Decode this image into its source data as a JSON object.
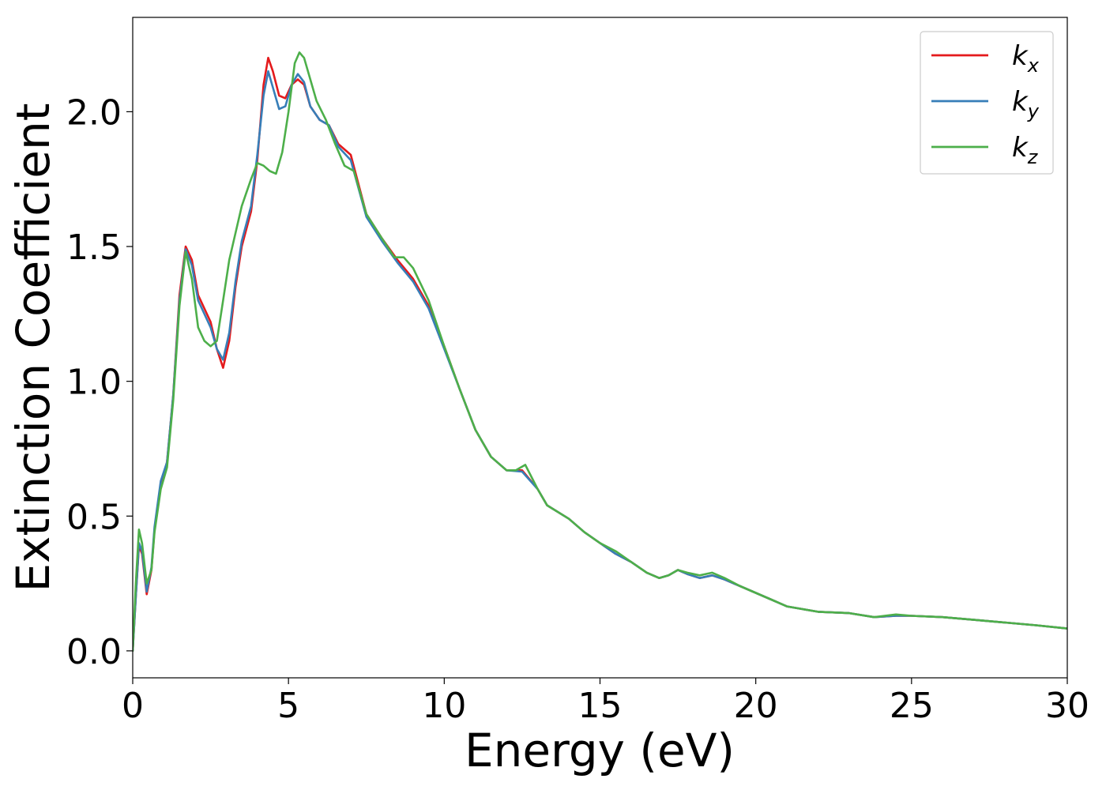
{
  "chart_data": {
    "type": "line",
    "xlabel": "Energy (eV)",
    "ylabel": "Extinction Coefficient",
    "xlim": [
      0,
      30
    ],
    "ylim": [
      -0.1,
      2.35
    ],
    "x_ticks": [
      "0",
      "5",
      "10",
      "15",
      "20",
      "25",
      "30"
    ],
    "y_ticks": [
      "0.0",
      "0.5",
      "1.0",
      "1.5",
      "2.0"
    ],
    "grid": false,
    "legend_position": "top-right",
    "series": [
      {
        "name": "k_x",
        "label_base": "k",
        "label_sub": "x",
        "color": "#e41a1c",
        "points": [
          [
            0,
            0
          ],
          [
            0.1,
            0.2
          ],
          [
            0.2,
            0.39
          ],
          [
            0.3,
            0.36
          ],
          [
            0.45,
            0.21
          ],
          [
            0.6,
            0.3
          ],
          [
            0.7,
            0.45
          ],
          [
            0.9,
            0.62
          ],
          [
            1.1,
            0.7
          ],
          [
            1.3,
            0.95
          ],
          [
            1.5,
            1.32
          ],
          [
            1.7,
            1.5
          ],
          [
            1.9,
            1.45
          ],
          [
            2.1,
            1.32
          ],
          [
            2.3,
            1.27
          ],
          [
            2.5,
            1.22
          ],
          [
            2.7,
            1.12
          ],
          [
            2.9,
            1.05
          ],
          [
            3.1,
            1.15
          ],
          [
            3.3,
            1.35
          ],
          [
            3.5,
            1.5
          ],
          [
            3.8,
            1.63
          ],
          [
            4.0,
            1.82
          ],
          [
            4.2,
            2.1
          ],
          [
            4.35,
            2.2
          ],
          [
            4.5,
            2.15
          ],
          [
            4.7,
            2.06
          ],
          [
            4.9,
            2.05
          ],
          [
            5.1,
            2.1
          ],
          [
            5.3,
            2.12
          ],
          [
            5.5,
            2.1
          ],
          [
            5.7,
            2.02
          ],
          [
            6.0,
            1.97
          ],
          [
            6.3,
            1.95
          ],
          [
            6.6,
            1.88
          ],
          [
            7.0,
            1.84
          ],
          [
            7.5,
            1.62
          ],
          [
            8.0,
            1.53
          ],
          [
            8.5,
            1.45
          ],
          [
            9.0,
            1.38
          ],
          [
            9.5,
            1.28
          ],
          [
            10.0,
            1.13
          ],
          [
            10.5,
            0.97
          ],
          [
            11.0,
            0.82
          ],
          [
            11.5,
            0.72
          ],
          [
            12.0,
            0.67
          ],
          [
            12.5,
            0.67
          ],
          [
            13.0,
            0.6
          ],
          [
            13.3,
            0.54
          ],
          [
            14.0,
            0.49
          ],
          [
            14.5,
            0.44
          ],
          [
            15.0,
            0.4
          ],
          [
            15.5,
            0.36
          ],
          [
            16.0,
            0.33
          ],
          [
            16.5,
            0.29
          ],
          [
            16.9,
            0.27
          ],
          [
            17.2,
            0.28
          ],
          [
            17.5,
            0.3
          ],
          [
            17.8,
            0.285
          ],
          [
            18.2,
            0.27
          ],
          [
            18.6,
            0.28
          ],
          [
            19.0,
            0.265
          ],
          [
            19.5,
            0.24
          ],
          [
            20.0,
            0.215
          ],
          [
            20.5,
            0.19
          ],
          [
            21.0,
            0.165
          ],
          [
            21.5,
            0.155
          ],
          [
            22.0,
            0.145
          ],
          [
            23.0,
            0.14
          ],
          [
            23.8,
            0.125
          ],
          [
            24.5,
            0.13
          ],
          [
            25.0,
            0.13
          ],
          [
            26.0,
            0.125
          ],
          [
            27.0,
            0.115
          ],
          [
            28.0,
            0.105
          ],
          [
            29.0,
            0.095
          ],
          [
            30.0,
            0.083
          ]
        ]
      },
      {
        "name": "k_y",
        "label_base": "k",
        "label_sub": "y",
        "color": "#377eb8",
        "points": [
          [
            0,
            0
          ],
          [
            0.1,
            0.2
          ],
          [
            0.2,
            0.4
          ],
          [
            0.3,
            0.37
          ],
          [
            0.45,
            0.22
          ],
          [
            0.6,
            0.31
          ],
          [
            0.7,
            0.46
          ],
          [
            0.9,
            0.63
          ],
          [
            1.1,
            0.7
          ],
          [
            1.3,
            0.95
          ],
          [
            1.5,
            1.3
          ],
          [
            1.7,
            1.49
          ],
          [
            1.9,
            1.43
          ],
          [
            2.1,
            1.3
          ],
          [
            2.3,
            1.25
          ],
          [
            2.5,
            1.2
          ],
          [
            2.7,
            1.12
          ],
          [
            2.9,
            1.08
          ],
          [
            3.1,
            1.18
          ],
          [
            3.3,
            1.37
          ],
          [
            3.5,
            1.52
          ],
          [
            3.8,
            1.65
          ],
          [
            4.0,
            1.84
          ],
          [
            4.2,
            2.06
          ],
          [
            4.35,
            2.15
          ],
          [
            4.5,
            2.09
          ],
          [
            4.7,
            2.01
          ],
          [
            4.9,
            2.02
          ],
          [
            5.1,
            2.1
          ],
          [
            5.3,
            2.14
          ],
          [
            5.5,
            2.11
          ],
          [
            5.7,
            2.02
          ],
          [
            6.0,
            1.97
          ],
          [
            6.3,
            1.95
          ],
          [
            6.6,
            1.87
          ],
          [
            7.0,
            1.82
          ],
          [
            7.5,
            1.61
          ],
          [
            8.0,
            1.52
          ],
          [
            8.5,
            1.44
          ],
          [
            9.0,
            1.37
          ],
          [
            9.5,
            1.27
          ],
          [
            10.0,
            1.12
          ],
          [
            10.5,
            0.97
          ],
          [
            11.0,
            0.82
          ],
          [
            11.5,
            0.72
          ],
          [
            12.0,
            0.67
          ],
          [
            12.5,
            0.665
          ],
          [
            13.0,
            0.6
          ],
          [
            13.3,
            0.54
          ],
          [
            14.0,
            0.49
          ],
          [
            14.5,
            0.44
          ],
          [
            15.0,
            0.4
          ],
          [
            15.5,
            0.36
          ],
          [
            16.0,
            0.33
          ],
          [
            16.5,
            0.29
          ],
          [
            16.9,
            0.27
          ],
          [
            17.2,
            0.28
          ],
          [
            17.5,
            0.3
          ],
          [
            17.8,
            0.285
          ],
          [
            18.2,
            0.27
          ],
          [
            18.6,
            0.28
          ],
          [
            19.0,
            0.265
          ],
          [
            19.5,
            0.24
          ],
          [
            20.0,
            0.215
          ],
          [
            20.5,
            0.19
          ],
          [
            21.0,
            0.165
          ],
          [
            21.5,
            0.155
          ],
          [
            22.0,
            0.145
          ],
          [
            23.0,
            0.14
          ],
          [
            23.8,
            0.125
          ],
          [
            24.5,
            0.13
          ],
          [
            25.0,
            0.13
          ],
          [
            26.0,
            0.125
          ],
          [
            27.0,
            0.115
          ],
          [
            28.0,
            0.105
          ],
          [
            29.0,
            0.095
          ],
          [
            30.0,
            0.083
          ]
        ]
      },
      {
        "name": "k_z",
        "label_base": "k",
        "label_sub": "z",
        "color": "#4daf4a",
        "points": [
          [
            0,
            0
          ],
          [
            0.1,
            0.25
          ],
          [
            0.2,
            0.45
          ],
          [
            0.3,
            0.4
          ],
          [
            0.45,
            0.25
          ],
          [
            0.6,
            0.3
          ],
          [
            0.7,
            0.44
          ],
          [
            0.9,
            0.6
          ],
          [
            1.1,
            0.68
          ],
          [
            1.3,
            0.93
          ],
          [
            1.5,
            1.28
          ],
          [
            1.7,
            1.48
          ],
          [
            1.9,
            1.38
          ],
          [
            2.1,
            1.2
          ],
          [
            2.3,
            1.15
          ],
          [
            2.5,
            1.13
          ],
          [
            2.7,
            1.15
          ],
          [
            2.9,
            1.3
          ],
          [
            3.1,
            1.45
          ],
          [
            3.3,
            1.55
          ],
          [
            3.5,
            1.65
          ],
          [
            3.8,
            1.75
          ],
          [
            4.0,
            1.81
          ],
          [
            4.2,
            1.8
          ],
          [
            4.4,
            1.78
          ],
          [
            4.6,
            1.77
          ],
          [
            4.8,
            1.85
          ],
          [
            5.0,
            2.0
          ],
          [
            5.2,
            2.18
          ],
          [
            5.35,
            2.22
          ],
          [
            5.5,
            2.2
          ],
          [
            5.7,
            2.12
          ],
          [
            5.9,
            2.04
          ],
          [
            6.2,
            1.97
          ],
          [
            6.5,
            1.88
          ],
          [
            6.8,
            1.8
          ],
          [
            7.1,
            1.78
          ],
          [
            7.5,
            1.62
          ],
          [
            8.0,
            1.53
          ],
          [
            8.4,
            1.46
          ],
          [
            8.7,
            1.46
          ],
          [
            9.0,
            1.42
          ],
          [
            9.5,
            1.3
          ],
          [
            10.0,
            1.13
          ],
          [
            10.5,
            0.97
          ],
          [
            11.0,
            0.82
          ],
          [
            11.5,
            0.72
          ],
          [
            12.0,
            0.67
          ],
          [
            12.3,
            0.67
          ],
          [
            12.6,
            0.69
          ],
          [
            13.0,
            0.6
          ],
          [
            13.3,
            0.54
          ],
          [
            14.0,
            0.49
          ],
          [
            14.5,
            0.44
          ],
          [
            15.0,
            0.4
          ],
          [
            15.5,
            0.37
          ],
          [
            16.0,
            0.33
          ],
          [
            16.5,
            0.29
          ],
          [
            16.9,
            0.27
          ],
          [
            17.2,
            0.28
          ],
          [
            17.5,
            0.3
          ],
          [
            17.8,
            0.29
          ],
          [
            18.2,
            0.28
          ],
          [
            18.6,
            0.29
          ],
          [
            19.0,
            0.27
          ],
          [
            19.5,
            0.24
          ],
          [
            20.0,
            0.215
          ],
          [
            20.5,
            0.19
          ],
          [
            21.0,
            0.165
          ],
          [
            21.5,
            0.155
          ],
          [
            22.0,
            0.145
          ],
          [
            23.0,
            0.14
          ],
          [
            23.8,
            0.125
          ],
          [
            24.5,
            0.135
          ],
          [
            25.0,
            0.13
          ],
          [
            26.0,
            0.125
          ],
          [
            27.0,
            0.115
          ],
          [
            28.0,
            0.105
          ],
          [
            29.0,
            0.095
          ],
          [
            30.0,
            0.083
          ]
        ]
      }
    ]
  }
}
